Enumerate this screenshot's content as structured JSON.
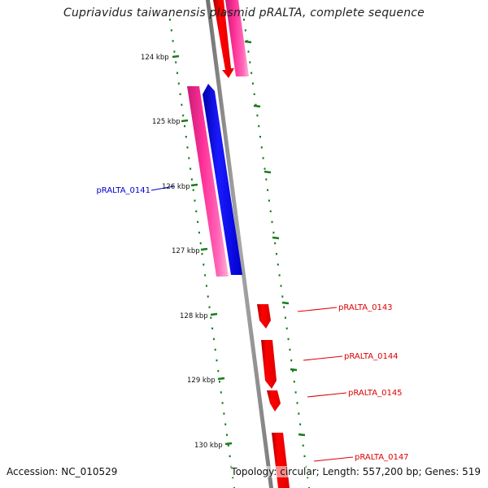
{
  "map": {
    "title": "Cupriavidus taiwanensis plasmid pRALTA, complete sequence",
    "accession": "Accession: NC_010529",
    "summary": "Topology: circular; Length: 557,200 bp; Genes: 519",
    "backbone_color": "#8c8c8c",
    "tick_color": "#1a7a1a",
    "kbp_ticks": [
      {
        "label": "124 kbp",
        "kbp": 124
      },
      {
        "label": "125 kbp",
        "kbp": 125
      },
      {
        "label": "126 kbp",
        "kbp": 126
      },
      {
        "label": "127 kbp",
        "kbp": 127
      },
      {
        "label": "128 kbp",
        "kbp": 128
      },
      {
        "label": "129 kbp",
        "kbp": 129
      },
      {
        "label": "130 kbp",
        "kbp": 130
      }
    ],
    "gene_labels": [
      {
        "text": "pRALTA_0141",
        "color": "#0000cc"
      },
      {
        "text": "pRALTA_0143",
        "color": "#dd0000"
      },
      {
        "text": "pRALTA_0144",
        "color": "#dd0000"
      },
      {
        "text": "pRALTA_0145",
        "color": "#dd0000"
      },
      {
        "text": "pRALTA_0147",
        "color": "#dd0000"
      }
    ],
    "feature_colors": {
      "cds_forward": "#ff0000",
      "cds_reverse": "#1a1aff",
      "gene": "#ff3399"
    }
  }
}
